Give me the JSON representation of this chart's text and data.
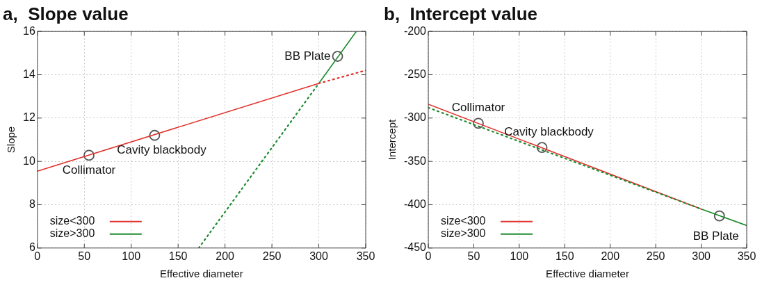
{
  "chart_data": [
    {
      "type": "line",
      "title": "a,  Slope value",
      "xlabel": "Effective diameter",
      "ylabel": "Slope",
      "xlim": [
        0,
        350
      ],
      "xticks": [
        0,
        50,
        100,
        150,
        200,
        250,
        300,
        350
      ],
      "ylim": [
        6,
        16
      ],
      "yticks": [
        6,
        8,
        10,
        12,
        14,
        16
      ],
      "grid": true,
      "legend": "bottom left",
      "series": [
        {
          "name": "size<300",
          "color": "#e2312c",
          "x": [
            0,
            300
          ],
          "values": [
            9.55,
            13.6
          ],
          "line_style": "solid",
          "marker": "none"
        },
        {
          "color": "#e2312c",
          "x": [
            300,
            350
          ],
          "values": [
            13.6,
            14.2
          ],
          "line_style": "dotted",
          "marker": "none"
        },
        {
          "name": "size>300",
          "color": "#1b8a2c",
          "x": [
            300,
            340
          ],
          "values": [
            13.6,
            16
          ],
          "line_style": "solid",
          "marker": "none"
        },
        {
          "color": "#1b8a2c",
          "x": [
            172,
            300
          ],
          "values": [
            6,
            13.6
          ],
          "line_style": "dotted",
          "marker": "none"
        },
        {
          "type": "scatter",
          "color": "#555555",
          "x": [
            55,
            125,
            320
          ],
          "values": [
            10.28,
            11.2,
            14.85
          ],
          "marker": "circle"
        }
      ],
      "annotations": [
        {
          "text": "Collimator",
          "x": 55,
          "y": 10.28
        },
        {
          "text": "Cavity blackbody",
          "x": 125,
          "y": 11.2
        },
        {
          "text": "BB Plate",
          "x": 320,
          "y": 14.85
        }
      ]
    },
    {
      "type": "line",
      "title": "b,  Intercept value",
      "xlabel": "Effective diameter",
      "ylabel": "Intercept",
      "xlim": [
        0,
        350
      ],
      "xticks": [
        0,
        50,
        100,
        150,
        200,
        250,
        300,
        350
      ],
      "ylim": [
        -450,
        -200
      ],
      "yticks": [
        -450,
        -400,
        -350,
        -300,
        -250,
        -200
      ],
      "grid": true,
      "legend": "bottom left",
      "series": [
        {
          "color": "#1b8a2c",
          "x": [
            0,
            300
          ],
          "values": [
            -288,
            -405
          ],
          "line_style": "dotted",
          "marker": "none"
        },
        {
          "name": "size<300",
          "color": "#e2312c",
          "x": [
            0,
            300
          ],
          "values": [
            -284,
            -405
          ],
          "line_style": "solid",
          "marker": "none"
        },
        {
          "name": "size>300",
          "color": "#1b8a2c",
          "x": [
            300,
            350
          ],
          "values": [
            -405,
            -424
          ],
          "line_style": "solid",
          "marker": "none"
        },
        {
          "type": "scatter",
          "color": "#555555",
          "x": [
            55,
            125,
            320
          ],
          "values": [
            -306,
            -334,
            -413
          ],
          "marker": "circle"
        }
      ],
      "annotations": [
        {
          "text": "Collimator",
          "x": 55,
          "y": -306
        },
        {
          "text": "Cavity blackbody",
          "x": 125,
          "y": -334
        },
        {
          "text": "BB Plate",
          "x": 320,
          "y": -413
        }
      ]
    }
  ]
}
